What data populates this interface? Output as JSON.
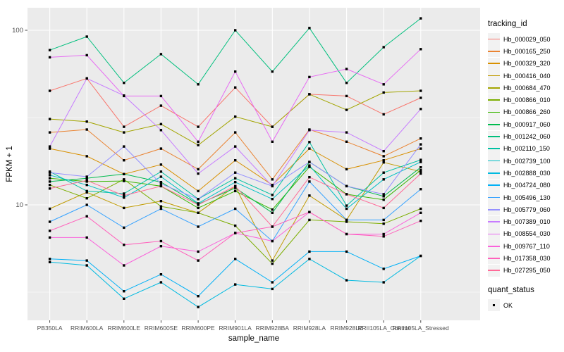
{
  "chart_data": {
    "type": "line",
    "title": "",
    "xlabel": "sample_name",
    "ylabel": "FPKM + 1",
    "y_scale": "log10",
    "y_ticks": [
      100,
      10
    ],
    "ylim": [
      2.2,
      135
    ],
    "grid": "white major and minor gridlines on gray panel",
    "legend_position": "right",
    "point_marker": "black-square",
    "categories": [
      "PB350LA",
      "RRIM600LA",
      "RRIM600LE",
      "RRIM600SE",
      "RRIM600PE",
      "RRIM901LA",
      "RRIM928BA",
      "RRIM928LA",
      "RRIM928LE",
      "RRII105LA_Control",
      "RRII105LA_Stressed"
    ],
    "series": [
      {
        "name": "Hb_000029_050",
        "color": "#F8766D",
        "values": [
          45,
          53,
          28,
          37,
          28,
          47,
          28,
          43,
          42,
          33,
          41
        ]
      },
      {
        "name": "Hb_000165_250",
        "color": "#EA8331",
        "values": [
          26,
          27,
          18,
          21,
          16,
          26,
          14,
          27,
          23,
          19,
          24
        ]
      },
      {
        "name": "Hb_000329_320",
        "color": "#D89000",
        "values": [
          21,
          19,
          15,
          17,
          12,
          18,
          13,
          21,
          16,
          18,
          21
        ]
      },
      {
        "name": "Hb_000416_040",
        "color": "#C09B00",
        "values": [
          9.5,
          11.8,
          9.6,
          10.5,
          9,
          12.8,
          4.8,
          11.3,
          8.2,
          17.5,
          15.5
        ]
      },
      {
        "name": "Hb_000684_470",
        "color": "#A3A500",
        "values": [
          31,
          30,
          26,
          29,
          22,
          32,
          28,
          43,
          35,
          44,
          45
        ]
      },
      {
        "name": "Hb_000866_010",
        "color": "#7CAE00",
        "values": [
          13,
          10.9,
          14,
          9.8,
          9,
          7.6,
          4.6,
          8.2,
          8,
          7.8,
          9.5
        ]
      },
      {
        "name": "Hb_000866_260",
        "color": "#39B600",
        "values": [
          14.2,
          13.6,
          13.7,
          12.8,
          9.6,
          12,
          9.4,
          16.5,
          11.5,
          10.7,
          15.8
        ]
      },
      {
        "name": "Hb_000917_060",
        "color": "#00BB4E",
        "values": [
          13.6,
          14.2,
          15,
          13.5,
          10.1,
          12.5,
          9,
          17.6,
          12.8,
          11.2,
          16.4
        ]
      },
      {
        "name": "Hb_001242_060",
        "color": "#00BF7D",
        "values": [
          77,
          92,
          50,
          73,
          49,
          100,
          58,
          103,
          50,
          80,
          117
        ]
      },
      {
        "name": "Hb_002110_150",
        "color": "#00C1A3",
        "values": [
          15.5,
          12,
          11.6,
          15.5,
          10.8,
          14.2,
          11.4,
          22.9,
          9.9,
          15.3,
          18.1
        ]
      },
      {
        "name": "Hb_002739_100",
        "color": "#00BFC4",
        "values": [
          14.8,
          13,
          11,
          14.5,
          10.2,
          13.5,
          10.8,
          16.8,
          9.5,
          14,
          17.6
        ]
      },
      {
        "name": "Hb_002888_030",
        "color": "#00BAE0",
        "values": [
          4.7,
          4.5,
          2.9,
          3.6,
          2.6,
          3.5,
          3.3,
          4.9,
          3.7,
          3.6,
          5.1
        ]
      },
      {
        "name": "Hb_004724_080",
        "color": "#00B0F6",
        "values": [
          4.9,
          4.8,
          3.2,
          4,
          3,
          4.9,
          3.6,
          5.4,
          5.4,
          4.3,
          5.1
        ]
      },
      {
        "name": "Hb_005496_130",
        "color": "#35A2FF",
        "values": [
          8,
          10,
          7.4,
          9.5,
          7.5,
          9.5,
          6.2,
          13.6,
          8.2,
          8.2,
          12.3
        ]
      },
      {
        "name": "Hb_005779_060",
        "color": "#9590FF",
        "values": [
          15.3,
          14.5,
          21.6,
          13.2,
          10.8,
          15.3,
          12.8,
          17.6,
          12.8,
          11.5,
          22.2
        ]
      },
      {
        "name": "Hb_007389_010",
        "color": "#C77CFF",
        "values": [
          21.6,
          53,
          42.3,
          26.8,
          15.1,
          21.6,
          12.8,
          26.8,
          26,
          20.3,
          35.4
        ]
      },
      {
        "name": "Hb_008554_030",
        "color": "#E76BF3",
        "values": [
          70,
          72,
          42,
          42,
          23,
          58,
          23,
          54,
          60,
          49,
          78
        ]
      },
      {
        "name": "Hb_009767_110",
        "color": "#FA62DB",
        "values": [
          6.5,
          6.5,
          4.5,
          5.8,
          5.4,
          6.9,
          6.2,
          9.1,
          6.8,
          6.8,
          9
        ]
      },
      {
        "name": "Hb_017358_030",
        "color": "#FF62BC",
        "values": [
          7.1,
          8.6,
          5.9,
          6.2,
          4.8,
          6.9,
          7.5,
          9.1,
          6.8,
          6.6,
          8.1
        ]
      },
      {
        "name": "Hb_027295_050",
        "color": "#FF6A98",
        "values": [
          12.4,
          13.8,
          11.3,
          12.8,
          10,
          12.8,
          7.5,
          14.4,
          11.5,
          9.6,
          15.1
        ]
      }
    ],
    "legend": {
      "tracking_title": "tracking_id",
      "quant_title": "quant_status",
      "quant_status_values": [
        "OK"
      ]
    },
    "colors": {
      "panel_bg": "#EBEBEB",
      "grid": "#FFFFFF",
      "point": "#000000",
      "tick_label": "#4D4D4D",
      "tick_mark": "#333333",
      "axis_title": "#000000",
      "legend_key_bg": "#F2F2F2"
    }
  }
}
